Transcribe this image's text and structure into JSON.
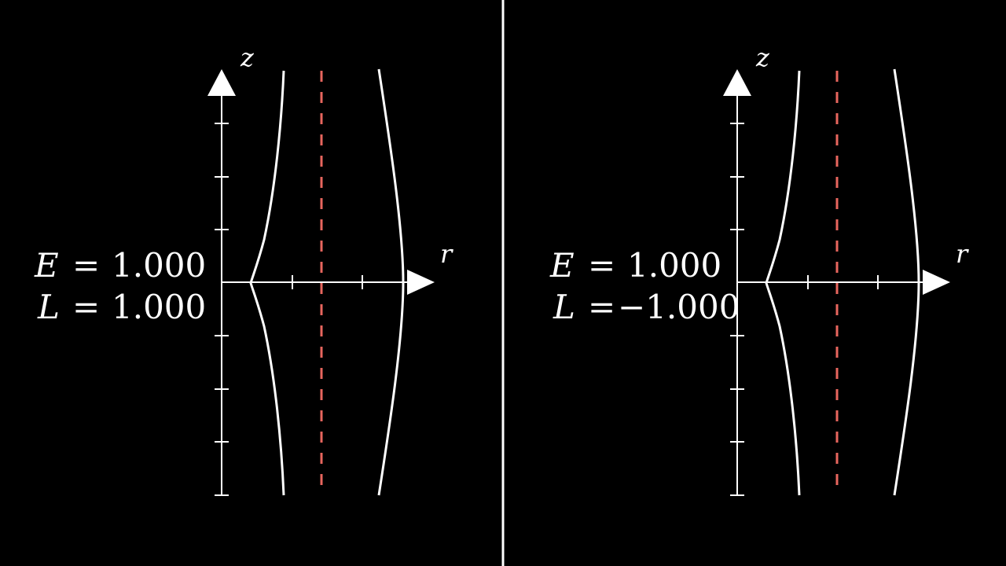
{
  "panels": [
    {
      "equation_lines": [
        {
          "var": "E",
          "eq": "=",
          "value": "1.000"
        },
        {
          "var": "L",
          "eq": "=",
          "value": "1.000"
        }
      ],
      "axes": {
        "x_label": "r",
        "y_label": "z"
      }
    },
    {
      "equation_lines": [
        {
          "var": "E",
          "eq": "=",
          "value": "1.000"
        },
        {
          "var": "L",
          "eq": "=",
          "value": "−1.000"
        }
      ],
      "axes": {
        "x_label": "r",
        "y_label": "z"
      }
    }
  ],
  "colors": {
    "background": "#000000",
    "foreground": "#ffffff",
    "dashed_line": "#e8665e"
  }
}
